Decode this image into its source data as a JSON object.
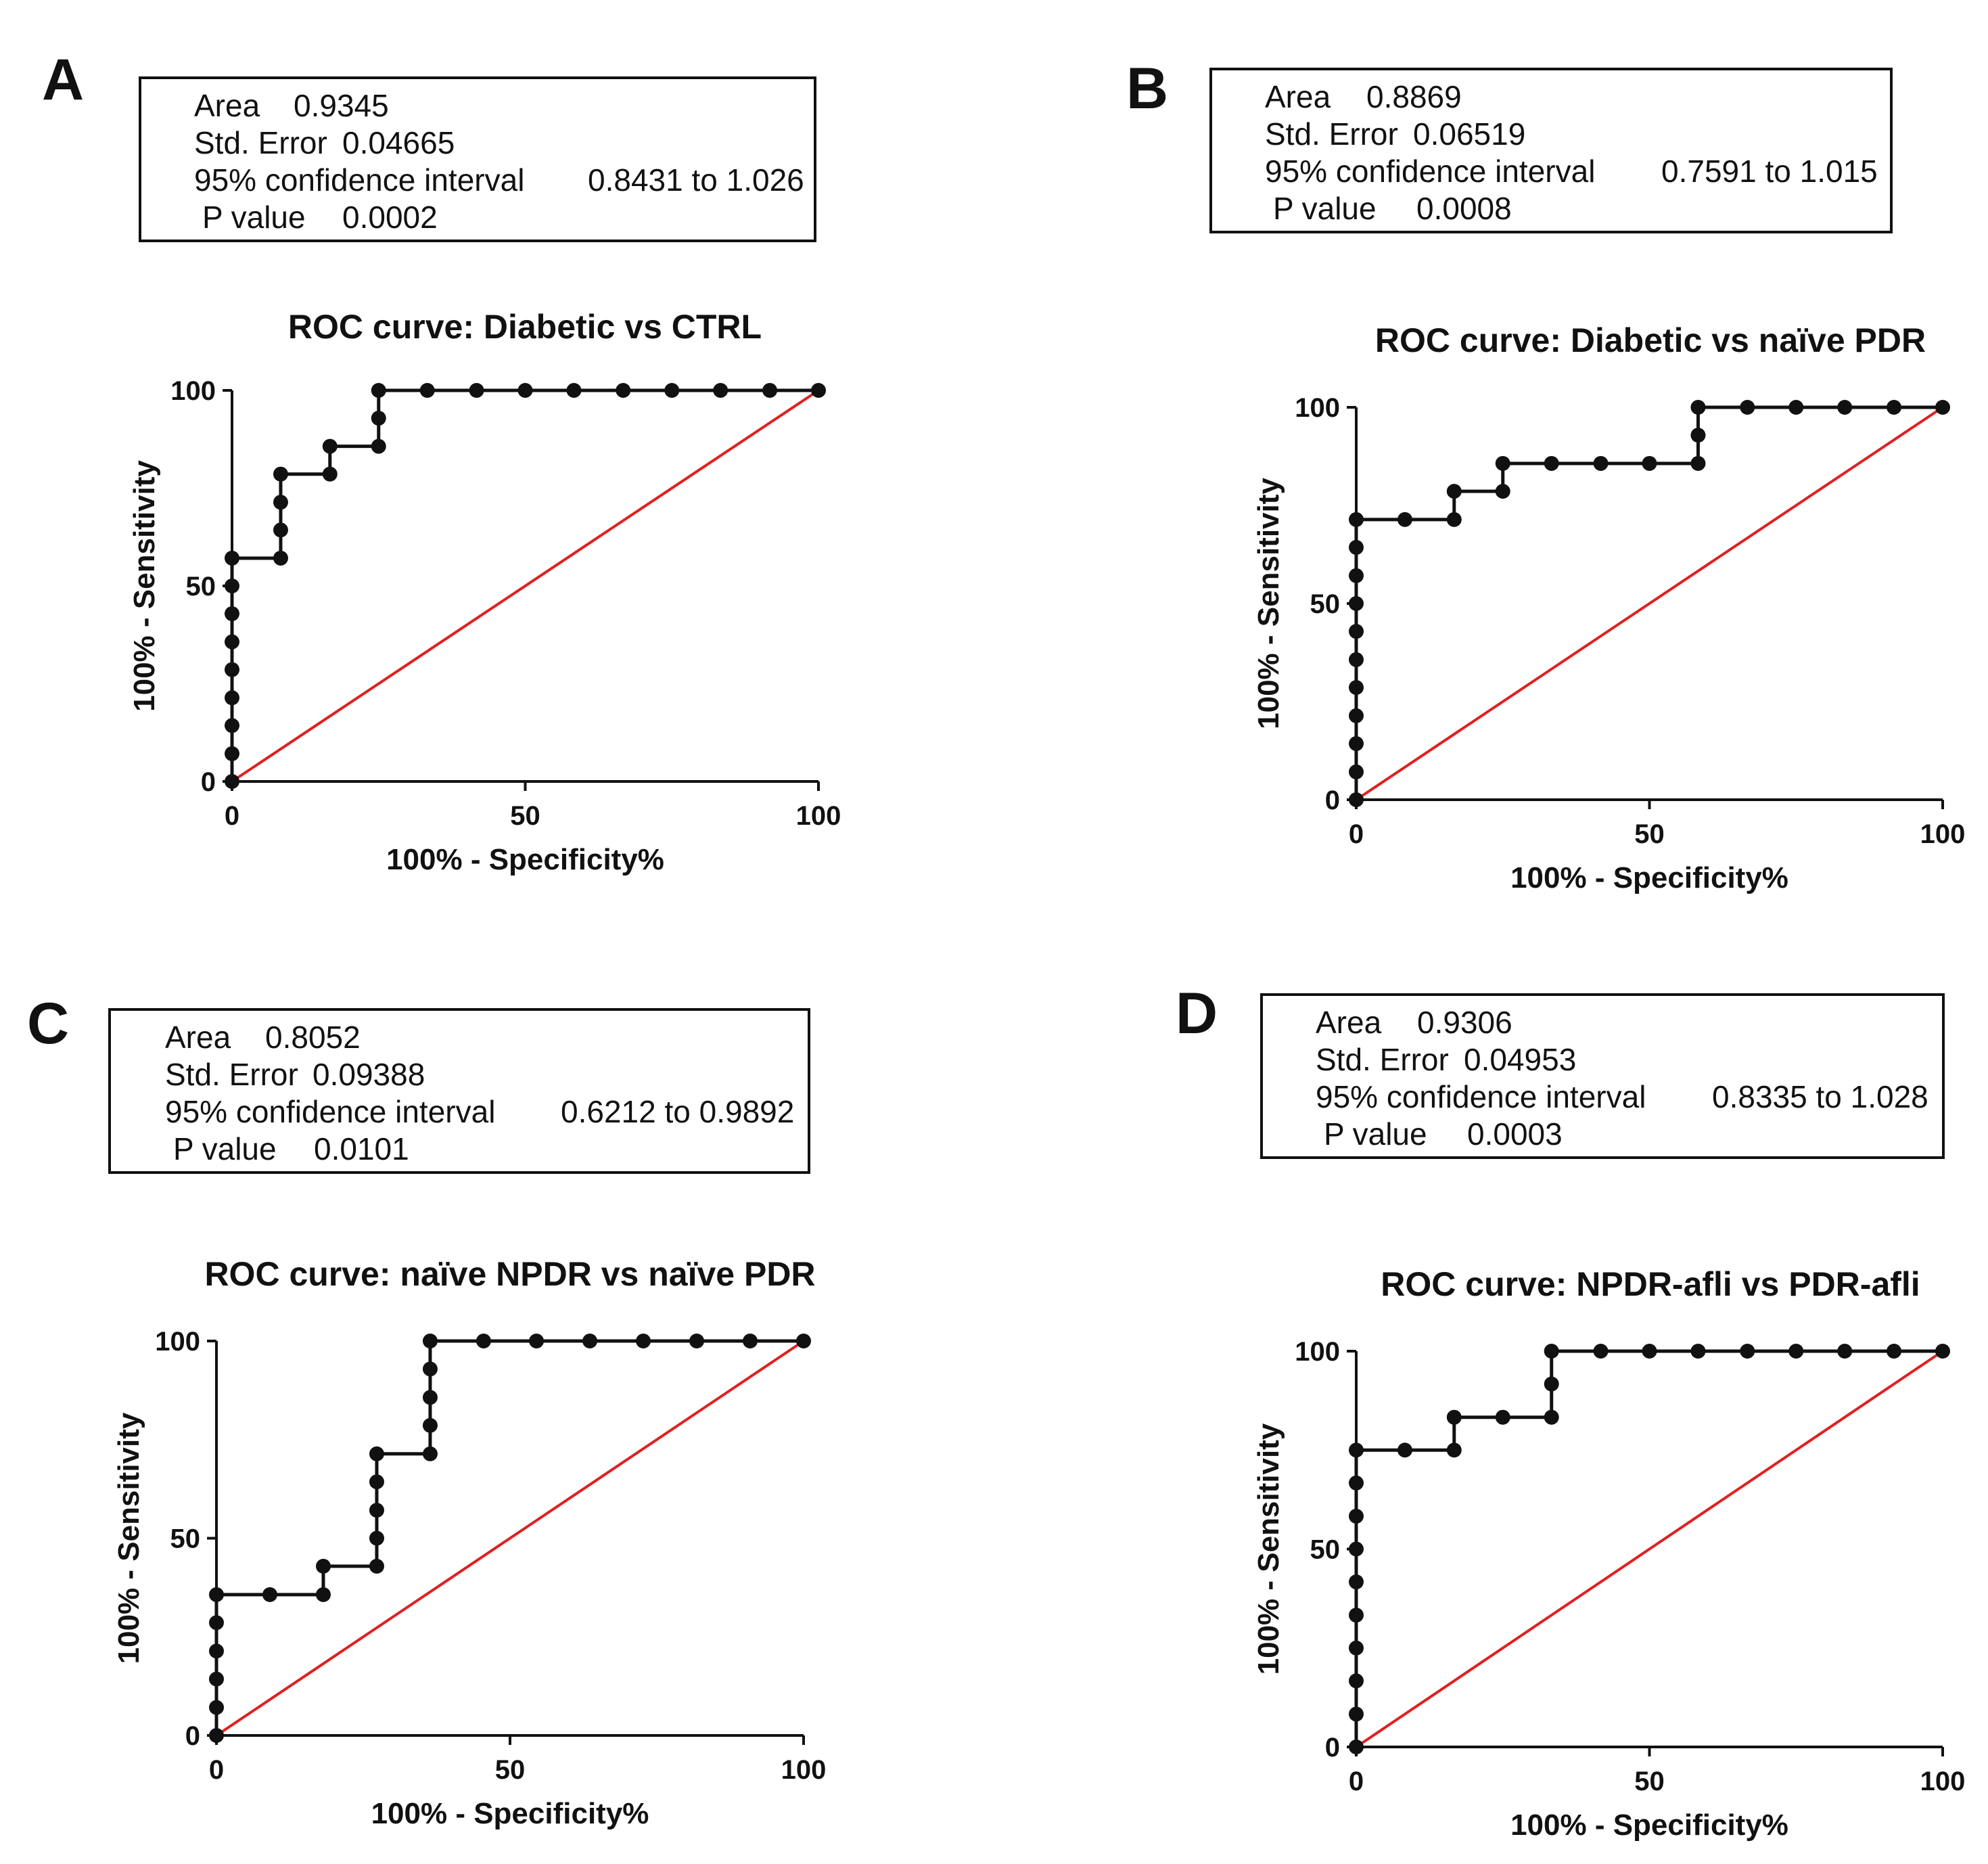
{
  "panels": [
    {
      "letter": "A",
      "stats": {
        "area_label": "Area",
        "area": "0.9345",
        "se_label": "Std. Error",
        "se": "0.04665",
        "ci_label": "95% confidence interval",
        "ci": "0.8431 to 1.026",
        "p_label": "P value",
        "p": "0.0002"
      }
    },
    {
      "letter": "B",
      "stats": {
        "area_label": "Area",
        "area": "0.8869",
        "se_label": "Std. Error",
        "se": "0.06519",
        "ci_label": "95% confidence interval",
        "ci": "0.7591 to 1.015",
        "p_label": "P value",
        "p": "0.0008"
      }
    },
    {
      "letter": "C",
      "stats": {
        "area_label": "Area",
        "area": "0.8052",
        "se_label": "Std. Error",
        "se": "0.09388",
        "ci_label": "95% confidence interval",
        "ci": "0.6212 to 0.9892",
        "p_label": "P value",
        "p": "0.0101"
      }
    },
    {
      "letter": "D",
      "stats": {
        "area_label": "Area",
        "area": "0.9306",
        "se_label": "Std. Error",
        "se": "0.04953",
        "ci_label": "95% confidence interval",
        "ci": "0.8335 to 1.028",
        "p_label": "P value",
        "p": "0.0003"
      }
    }
  ],
  "colors": {
    "curve": "#111111",
    "reference_line": "#e02020",
    "axis": "#111111"
  },
  "chart_data": [
    {
      "type": "line",
      "title": "ROC curve: Diabetic vs CTRL",
      "xlabel": "100% - Specificity%",
      "ylabel": "100% - Sensitivity",
      "xlim": [
        0,
        100
      ],
      "ylim": [
        0,
        100
      ],
      "xticks": [
        0,
        50,
        100
      ],
      "yticks": [
        0,
        50,
        100
      ],
      "grid": false,
      "series": [
        {
          "name": "ROC",
          "points": [
            [
              0,
              0
            ],
            [
              0,
              7.1
            ],
            [
              0,
              14.3
            ],
            [
              0,
              21.4
            ],
            [
              0,
              28.6
            ],
            [
              0,
              35.7
            ],
            [
              0,
              42.9
            ],
            [
              0,
              50
            ],
            [
              0,
              57.1
            ],
            [
              8.3,
              57.1
            ],
            [
              8.3,
              64.3
            ],
            [
              8.3,
              71.4
            ],
            [
              8.3,
              78.6
            ],
            [
              16.7,
              78.6
            ],
            [
              16.7,
              85.7
            ],
            [
              25,
              85.7
            ],
            [
              25,
              92.9
            ],
            [
              25,
              100
            ],
            [
              33.3,
              100
            ],
            [
              41.7,
              100
            ],
            [
              50,
              100
            ],
            [
              58.3,
              100
            ],
            [
              66.7,
              100
            ],
            [
              75,
              100
            ],
            [
              83.3,
              100
            ],
            [
              91.7,
              100
            ],
            [
              100,
              100
            ]
          ]
        },
        {
          "name": "Reference",
          "points": [
            [
              0,
              0
            ],
            [
              100,
              100
            ]
          ]
        }
      ]
    },
    {
      "type": "line",
      "title": "ROC curve: Diabetic vs naïve PDR",
      "xlabel": "100% - Specificity%",
      "ylabel": "100% - Sensitivity",
      "xlim": [
        0,
        100
      ],
      "ylim": [
        0,
        100
      ],
      "xticks": [
        0,
        50,
        100
      ],
      "yticks": [
        0,
        50,
        100
      ],
      "grid": false,
      "series": [
        {
          "name": "ROC",
          "points": [
            [
              0,
              0
            ],
            [
              0,
              7.1
            ],
            [
              0,
              14.3
            ],
            [
              0,
              21.4
            ],
            [
              0,
              28.6
            ],
            [
              0,
              35.7
            ],
            [
              0,
              42.9
            ],
            [
              0,
              50
            ],
            [
              0,
              57.1
            ],
            [
              0,
              64.3
            ],
            [
              0,
              71.4
            ],
            [
              8.3,
              71.4
            ],
            [
              16.7,
              71.4
            ],
            [
              16.7,
              78.6
            ],
            [
              25,
              78.6
            ],
            [
              25,
              85.7
            ],
            [
              33.3,
              85.7
            ],
            [
              41.7,
              85.7
            ],
            [
              50,
              85.7
            ],
            [
              58.3,
              85.7
            ],
            [
              58.3,
              92.9
            ],
            [
              58.3,
              100
            ],
            [
              66.7,
              100
            ],
            [
              75,
              100
            ],
            [
              83.3,
              100
            ],
            [
              91.7,
              100
            ],
            [
              100,
              100
            ]
          ]
        },
        {
          "name": "Reference",
          "points": [
            [
              0,
              0
            ],
            [
              100,
              100
            ]
          ]
        }
      ]
    },
    {
      "type": "line",
      "title": "ROC curve: naïve NPDR vs naïve PDR",
      "xlabel": "100% - Specificity%",
      "ylabel": "100% - Sensitivity",
      "xlim": [
        0,
        100
      ],
      "ylim": [
        0,
        100
      ],
      "xticks": [
        0,
        50,
        100
      ],
      "yticks": [
        0,
        50,
        100
      ],
      "grid": false,
      "series": [
        {
          "name": "ROC",
          "points": [
            [
              0,
              0
            ],
            [
              0,
              7.1
            ],
            [
              0,
              14.3
            ],
            [
              0,
              21.4
            ],
            [
              0,
              28.6
            ],
            [
              0,
              35.7
            ],
            [
              9.1,
              35.7
            ],
            [
              18.2,
              35.7
            ],
            [
              18.2,
              42.9
            ],
            [
              27.3,
              42.9
            ],
            [
              27.3,
              50
            ],
            [
              27.3,
              57.1
            ],
            [
              27.3,
              64.3
            ],
            [
              27.3,
              71.4
            ],
            [
              36.4,
              71.4
            ],
            [
              36.4,
              78.6
            ],
            [
              36.4,
              85.7
            ],
            [
              36.4,
              92.9
            ],
            [
              36.4,
              100
            ],
            [
              45.5,
              100
            ],
            [
              54.5,
              100
            ],
            [
              63.6,
              100
            ],
            [
              72.7,
              100
            ],
            [
              81.8,
              100
            ],
            [
              90.9,
              100
            ],
            [
              100,
              100
            ]
          ]
        },
        {
          "name": "Reference",
          "points": [
            [
              0,
              0
            ],
            [
              100,
              100
            ]
          ]
        }
      ]
    },
    {
      "type": "line",
      "title": "ROC curve: NPDR-afli vs PDR-afli",
      "xlabel": "100% - Specificity%",
      "ylabel": "100% - Sensitivity",
      "xlim": [
        0,
        100
      ],
      "ylim": [
        0,
        100
      ],
      "xticks": [
        0,
        50,
        100
      ],
      "yticks": [
        0,
        50,
        100
      ],
      "grid": false,
      "series": [
        {
          "name": "ROC",
          "points": [
            [
              0,
              0
            ],
            [
              0,
              8.3
            ],
            [
              0,
              16.7
            ],
            [
              0,
              25
            ],
            [
              0,
              33.3
            ],
            [
              0,
              41.7
            ],
            [
              0,
              50
            ],
            [
              0,
              58.3
            ],
            [
              0,
              66.7
            ],
            [
              0,
              75
            ],
            [
              8.3,
              75
            ],
            [
              16.7,
              75
            ],
            [
              16.7,
              83.3
            ],
            [
              25,
              83.3
            ],
            [
              33.3,
              83.3
            ],
            [
              33.3,
              91.7
            ],
            [
              33.3,
              100
            ],
            [
              41.7,
              100
            ],
            [
              50,
              100
            ],
            [
              58.3,
              100
            ],
            [
              66.7,
              100
            ],
            [
              75,
              100
            ],
            [
              83.3,
              100
            ],
            [
              91.7,
              100
            ],
            [
              100,
              100
            ]
          ]
        },
        {
          "name": "Reference",
          "points": [
            [
              0,
              0
            ],
            [
              100,
              100
            ]
          ]
        }
      ]
    }
  ]
}
